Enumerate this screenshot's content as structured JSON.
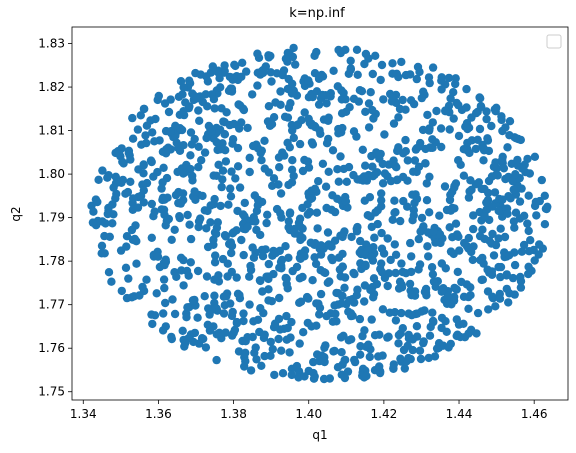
{
  "chart_data": {
    "type": "scatter",
    "title": "k=np.inf",
    "xlabel": "q1",
    "ylabel": "q2",
    "xlim": [
      1.337,
      1.469
    ],
    "ylim": [
      1.7481,
      1.8338
    ],
    "xticks": [
      1.34,
      1.36,
      1.38,
      1.4,
      1.42,
      1.44,
      1.46
    ],
    "yticks": [
      1.75,
      1.76,
      1.77,
      1.78,
      1.79,
      1.8,
      1.81,
      1.82,
      1.83
    ],
    "xtick_labels": [
      "1.34",
      "1.36",
      "1.38",
      "1.40",
      "1.42",
      "1.44",
      "1.46"
    ],
    "ytick_labels": [
      "1.75",
      "1.76",
      "1.77",
      "1.78",
      "1.79",
      "1.80",
      "1.81",
      "1.82",
      "1.83"
    ],
    "grid": false,
    "legend": "top-right (empty)",
    "point_color": "#1f77b4",
    "distribution": {
      "shape": "filled-ellipse",
      "center": [
        1.403,
        1.791
      ],
      "radius_x": 0.061,
      "radius_y": 0.0385,
      "approx_points": 1400
    }
  }
}
